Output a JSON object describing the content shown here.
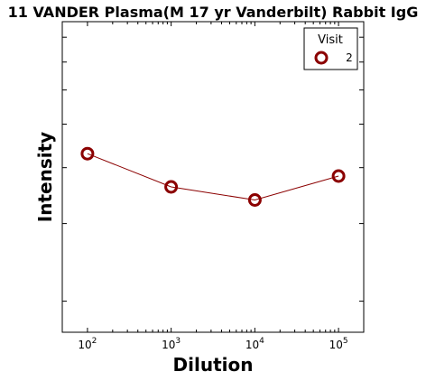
{
  "chart_data": {
    "type": "line",
    "title": "11 VANDER Plasma(M 17 yr Vanderbilt) Rabbit IgG",
    "xlabel": "Dilution",
    "ylabel": "Intensity",
    "x_scale": "log",
    "xlim": [
      50,
      200000
    ],
    "x_ticks": [
      100,
      1000,
      10000,
      100000
    ],
    "x_tick_labels": [
      {
        "base": "10",
        "exp": "2"
      },
      {
        "base": "10",
        "exp": "3"
      },
      {
        "base": "10",
        "exp": "4"
      },
      {
        "base": "10",
        "exp": "5"
      }
    ],
    "y_tick_labels_visible": false,
    "ylim": [
      0,
      1
    ],
    "grid": false,
    "legend": {
      "title": "Visit",
      "position": "top-right"
    },
    "series": [
      {
        "name": "2",
        "color": "#8b0000",
        "marker": "hollow-circle",
        "x": [
          100,
          1000,
          10000,
          100000
        ],
        "y": [
          0.575,
          0.468,
          0.426,
          0.503
        ]
      }
    ]
  }
}
